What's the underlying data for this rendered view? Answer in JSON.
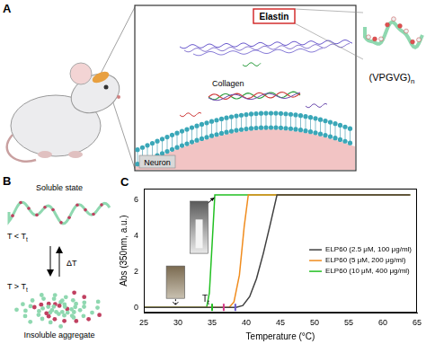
{
  "panel_labels": [
    "A",
    "B",
    "C"
  ],
  "diagram_a": {
    "elastin": "Elastin",
    "collagen": "Collagen",
    "neuron": "Neuron",
    "peptide": {
      "text": "(VPGVG)",
      "sub": "n"
    }
  },
  "diagram_b": {
    "top": "Soluble state",
    "cold": {
      "text": "T < T",
      "sub": "t"
    },
    "delta": "ΔT",
    "hot": {
      "text": "T > T",
      "sub": "t"
    },
    "bottom": "Insoluble aggregate"
  },
  "chart_data": {
    "type": "line",
    "x_label": "Temperature (°C)",
    "y_label": "Abs (350nm, a.u.)",
    "xlim": [
      25,
      65
    ],
    "xticks": [
      25,
      30,
      35,
      40,
      45,
      50,
      55,
      60,
      65
    ],
    "ylim": [
      -0.3,
      6.6
    ],
    "yticks": [
      0,
      2,
      4,
      6
    ],
    "grid": false,
    "legend": "right",
    "series": [
      {
        "name": "ELP60 (2.5 μM, 100 μg/ml)",
        "color": "#404040",
        "x": [
          25,
          38.5,
          39.5,
          40.5,
          41.5,
          42.5,
          43.5,
          44.5,
          64
        ],
        "values": [
          0,
          0,
          0.1,
          0.6,
          1.6,
          3.0,
          4.6,
          6.25,
          6.25
        ]
      },
      {
        "name": "ELP60 (5 μM, 200 μg/ml)",
        "color": "#f08c1e",
        "x": [
          25,
          37.5,
          38.2,
          39,
          39.7,
          40.3,
          64
        ],
        "values": [
          0,
          0,
          0.3,
          1.8,
          4.5,
          6.25,
          6.25
        ]
      },
      {
        "name": "ELP60 (10 μM, 400 μg/ml)",
        "color": "#22c022",
        "x": [
          25,
          34.2,
          34.6,
          35.0,
          35.4,
          64
        ],
        "values": [
          0,
          0,
          0.8,
          3.5,
          6.25,
          6.25
        ]
      }
    ],
    "transition_label": {
      "text": "T",
      "sub": "t"
    },
    "transition_temperatures": [
      {
        "value": 35.0,
        "color": "#22c022"
      },
      {
        "value": 36.7,
        "color": "#d63a8a"
      },
      {
        "value": 38.4,
        "color": "#6a5acd"
      }
    ]
  }
}
